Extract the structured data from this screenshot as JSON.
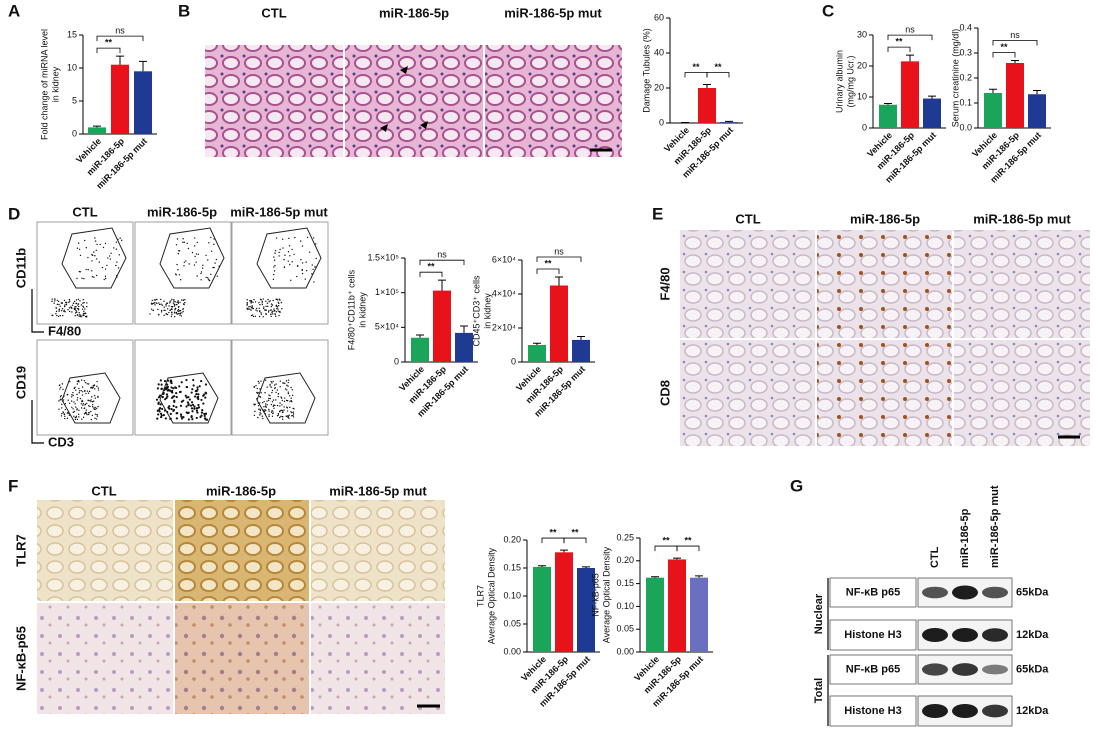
{
  "chart_data": [
    {
      "type": "bar",
      "ylabel": [
        "Fold change of miRNA level",
        "in kidney"
      ],
      "categories": [
        "Vehicle",
        "miR-186-5p",
        "miR-186-5p mut"
      ],
      "values": [
        1,
        10.5,
        9.5
      ],
      "errors": [
        0.2,
        1.3,
        1.5
      ],
      "colors": [
        "#1aa55a",
        "#e8121b",
        "#1f3a93"
      ],
      "ylim": [
        0,
        15
      ],
      "yticks": [
        0,
        5,
        10,
        15
      ],
      "annotations": [
        "**",
        "ns"
      ]
    },
    {
      "type": "bar",
      "ylabel": [
        "Damage Tubules (%)"
      ],
      "categories": [
        "Vehicle",
        "miR-186-5p",
        "miR-186-5p mut"
      ],
      "values": [
        0,
        20,
        0.5
      ],
      "errors": [
        0.3,
        2,
        0.4
      ],
      "colors": [
        "#1aa55a",
        "#e8121b",
        "#1f3a93"
      ],
      "ylim": [
        0,
        60
      ],
      "yticks": [
        0,
        20,
        40,
        60
      ],
      "annotations": [
        "**",
        "**"
      ]
    },
    {
      "type": "bar",
      "ylabel": [
        "Urinary albumin",
        "(mg/mg Ucr.)"
      ],
      "categories": [
        "Vehicle",
        "miR-186-5p",
        "miR-186-5p mut"
      ],
      "values": [
        7.5,
        21.5,
        9.5
      ],
      "errors": [
        0.4,
        2,
        0.8
      ],
      "colors": [
        "#1aa55a",
        "#e8121b",
        "#1f3a93"
      ],
      "ylim": [
        0,
        30
      ],
      "yticks": [
        0,
        10,
        20,
        30
      ],
      "annotations": [
        "**",
        "ns"
      ]
    },
    {
      "type": "bar",
      "ylabel": [
        "Serum creatinine (mg/dl)"
      ],
      "categories": [
        "Vehicle",
        "miR-186-5p",
        "miR-186-5p mut"
      ],
      "values": [
        0.14,
        0.26,
        0.135
      ],
      "errors": [
        0.015,
        0.01,
        0.015
      ],
      "colors": [
        "#1aa55a",
        "#e8121b",
        "#1f3a93"
      ],
      "ylim": [
        0,
        0.4
      ],
      "yticks": [
        {
          "value": 0,
          "label": "0.0"
        },
        0.1,
        0.2,
        0.3,
        0.4
      ],
      "annotations": [
        "**",
        "ns"
      ]
    },
    {
      "type": "bar",
      "ylabel": [
        "F4/80⁺CD11b⁺ cells",
        "in kidney"
      ],
      "categories": [
        "Vehicle",
        "miR-186-5p",
        "miR-186-5p mut"
      ],
      "values": [
        35000,
        103000,
        42000
      ],
      "errors": [
        4000,
        15000,
        10000
      ],
      "colors": [
        "#1aa55a",
        "#e8121b",
        "#1f3a93"
      ],
      "ylim": [
        0,
        150000
      ],
      "yticks": [
        0,
        {
          "value": 50000,
          "label": "5×10⁴"
        },
        {
          "value": 100000,
          "label": "1×10⁵"
        },
        {
          "value": 150000,
          "label": "1.5×10⁵"
        }
      ],
      "annotations": [
        "**",
        "ns"
      ]
    },
    {
      "type": "bar",
      "ylabel": [
        "CD45⁺CD3⁺ cells",
        "in kidney"
      ],
      "categories": [
        "Vehicle",
        "miR-186-5p",
        "miR-186-5p mut"
      ],
      "values": [
        10000,
        45000,
        13000
      ],
      "errors": [
        1000,
        5000,
        2000
      ],
      "colors": [
        "#1aa55a",
        "#e8121b",
        "#1f3a93"
      ],
      "ylim": [
        0,
        60000
      ],
      "yticks": [
        0,
        {
          "value": 20000,
          "label": "2×10⁴"
        },
        {
          "value": 40000,
          "label": "4×10⁴"
        },
        {
          "value": 60000,
          "label": "6×10⁴"
        }
      ],
      "annotations": [
        "**",
        "ns"
      ]
    },
    {
      "type": "bar",
      "ylabel": [
        "TLR7",
        "Average Optical Density"
      ],
      "categories": [
        "Vehicle",
        "miR-186-5p",
        "miR-186-5p mut"
      ],
      "values": [
        0.152,
        0.178,
        0.15
      ],
      "errors": [
        0.002,
        0.004,
        0.002
      ],
      "colors": [
        "#1aa55a",
        "#e8121b",
        "#1f3a93"
      ],
      "ylim": [
        0,
        0.2
      ],
      "yticks": [
        {
          "value": 0,
          "label": "0.00"
        },
        {
          "value": 0.05,
          "label": "0.05"
        },
        {
          "value": 0.1,
          "label": "0.10"
        },
        {
          "value": 0.15,
          "label": "0.15"
        },
        {
          "value": 0.2,
          "label": "0.20"
        }
      ],
      "annotations": [
        "**",
        "**"
      ]
    },
    {
      "type": "bar",
      "ylabel": [
        "NF-kB-p65",
        "Average Optical Density"
      ],
      "categories": [
        "Vehicle",
        "miR-186-5p",
        "miR-186-5p mut"
      ],
      "values": [
        0.163,
        0.203,
        0.163
      ],
      "errors": [
        0.002,
        0.003,
        0.004
      ],
      "colors": [
        "#1aa55a",
        "#e8121b",
        "#6a6fc0"
      ],
      "ylim": [
        0,
        0.25
      ],
      "yticks": [
        {
          "value": 0,
          "label": "0.00"
        },
        {
          "value": 0.05,
          "label": "0.05"
        },
        {
          "value": 0.1,
          "label": "0.10"
        },
        {
          "value": 0.15,
          "label": "0.15"
        },
        {
          "value": 0.2,
          "label": "0.20"
        },
        {
          "value": 0.25,
          "label": "0.25"
        }
      ],
      "annotations": [
        "**",
        "**"
      ]
    }
  ],
  "panel_labels": [
    "A",
    "B",
    "C",
    "D",
    "E",
    "F",
    "G"
  ],
  "images": {
    "B": {
      "columns": [
        "CTL",
        "miR-186-5p",
        "miR-186-5p mut"
      ]
    },
    "D": {
      "columns": [
        "CTL",
        "miR-186-5p",
        "miR-186-5p mut"
      ],
      "rows": [
        {
          "y": "CD11b",
          "x": "F4/80"
        },
        {
          "y": "CD19",
          "x": "CD3"
        }
      ]
    },
    "E": {
      "columns": [
        "CTL",
        "miR-186-5p",
        "miR-186-5p mut"
      ],
      "rows": [
        "F4/80",
        "CD8"
      ]
    },
    "F": {
      "columns": [
        "CTL",
        "miR-186-5p",
        "miR-186-5p mut"
      ],
      "rows": [
        "TLR7",
        "NF-κB-p65"
      ]
    }
  },
  "blot": {
    "lanes": [
      "CTL",
      "miR-186-5p",
      "miR-186-5p mut"
    ],
    "groups": [
      "Nuclear",
      "Total"
    ],
    "rows": [
      {
        "label": "NF-κB p65",
        "size": "65kDa"
      },
      {
        "label": "Histone H3",
        "size": "12kDa"
      },
      {
        "label": "NF-κB p65",
        "size": "65kDa"
      },
      {
        "label": "Histone H3",
        "size": "12kDa"
      }
    ]
  }
}
